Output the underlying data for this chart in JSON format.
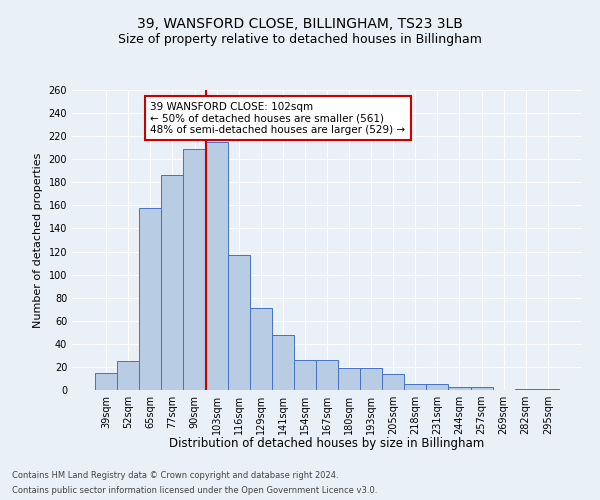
{
  "title1": "39, WANSFORD CLOSE, BILLINGHAM, TS23 3LB",
  "title2": "Size of property relative to detached houses in Billingham",
  "xlabel": "Distribution of detached houses by size in Billingham",
  "ylabel": "Number of detached properties",
  "categories": [
    "39sqm",
    "52sqm",
    "65sqm",
    "77sqm",
    "90sqm",
    "103sqm",
    "116sqm",
    "129sqm",
    "141sqm",
    "154sqm",
    "167sqm",
    "180sqm",
    "193sqm",
    "205sqm",
    "218sqm",
    "231sqm",
    "244sqm",
    "257sqm",
    "269sqm",
    "282sqm",
    "295sqm"
  ],
  "values": [
    15,
    25,
    158,
    186,
    209,
    215,
    117,
    71,
    48,
    26,
    26,
    19,
    19,
    14,
    5,
    5,
    3,
    3,
    0,
    1,
    1
  ],
  "bar_color": "#b8cce4",
  "bar_edge_color": "#4472c4",
  "vline_index": 4.5,
  "vline_color": "#cc0000",
  "annotation_line1": "39 WANSFORD CLOSE: 102sqm",
  "annotation_line2": "← 50% of detached houses are smaller (561)",
  "annotation_line3": "48% of semi-detached houses are larger (529) →",
  "annotation_box_color": "white",
  "annotation_box_edge": "#cc0000",
  "ylim": [
    0,
    260
  ],
  "yticks": [
    0,
    20,
    40,
    60,
    80,
    100,
    120,
    140,
    160,
    180,
    200,
    220,
    240,
    260
  ],
  "bg_color": "#eaf0f8",
  "plot_bg_color": "#eaf0f8",
  "footer1": "Contains HM Land Registry data © Crown copyright and database right 2024.",
  "footer2": "Contains public sector information licensed under the Open Government Licence v3.0.",
  "title1_fontsize": 10,
  "title2_fontsize": 9,
  "xlabel_fontsize": 8.5,
  "ylabel_fontsize": 8,
  "tick_fontsize": 7,
  "annotation_fontsize": 7.5,
  "footer_fontsize": 6
}
